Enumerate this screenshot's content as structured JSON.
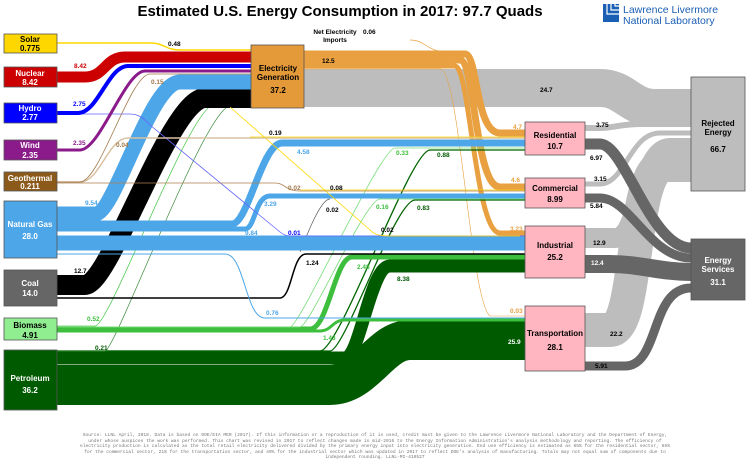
{
  "title": "Estimated U.S. Energy Consumption in 2017: 97.7 Quads",
  "logo": {
    "line1": "Lawrence Livermore",
    "line2": "National Laboratory",
    "color": "#1a5fb4"
  },
  "sources": [
    {
      "name": "Solar",
      "value": "0.775",
      "color": "#FFD700"
    },
    {
      "name": "Nuclear",
      "value": "8.42",
      "color": "#CC0000"
    },
    {
      "name": "Hydro",
      "value": "2.77",
      "color": "#0000FF"
    },
    {
      "name": "Wind",
      "value": "2.35",
      "color": "#8B1A8B"
    },
    {
      "name": "Geothermal",
      "value": "0.211",
      "color": "#8B5A1A"
    },
    {
      "name": "Natural Gas",
      "value": "28.0",
      "color": "#4DA6E8"
    },
    {
      "name": "Coal",
      "value": "14.0",
      "color": "#666666"
    },
    {
      "name": "Biomass",
      "value": "4.91",
      "color": "#90EE90"
    },
    {
      "name": "Petroleum",
      "value": "36.2",
      "color": "#005A00"
    }
  ],
  "electricity": {
    "name1": "Electricity",
    "name2": "Generation",
    "value": "37.2",
    "color": "#E59A3A"
  },
  "imports": {
    "line1": "Net Electricity",
    "line2": "Imports",
    "value": "0.06"
  },
  "sectors": [
    {
      "name": "Residential",
      "value": "10.7"
    },
    {
      "name": "Commercial",
      "value": "8.99"
    },
    {
      "name": "Industrial",
      "value": "25.2"
    },
    {
      "name": "Transportation",
      "value": "28.1"
    }
  ],
  "sinks": {
    "rejected": {
      "name1": "Rejected",
      "name2": "Energy",
      "value": "66.7"
    },
    "services": {
      "name1": "Energy",
      "name2": "Services",
      "value": "31.1"
    }
  },
  "flow_labels": {
    "solar_elec": "0.48",
    "nuclear_elec": "8.42",
    "hydro_elec": "2.75",
    "wind_elec": "2.35",
    "geo_elec": "0.15",
    "geo_res": "0.04",
    "geo_com": "0.02",
    "solar_res": "0.19",
    "solar_com": "0.08",
    "solar_ind": "0.02",
    "ng_elec": "9.54",
    "ng_res": "4.58",
    "ng_com": "3.29",
    "ng_ind": "9.84",
    "ng_trans": "0.76",
    "hydro_ind": "0.01",
    "coal_elec": "12.7",
    "coal_com": "0.02",
    "coal_ind": "1.24",
    "bio_elec": "0.52",
    "bio_res": "0.33",
    "bio_com": "0.16",
    "bio_ind": "2.48",
    "bio_trans": "1.43",
    "pet_elec": "0.21",
    "pet_res": "0.88",
    "pet_com": "0.83",
    "pet_ind": "8.38",
    "pet_trans": "25.9",
    "elec_out": "12.5",
    "elec_rej": "24.7",
    "elec_res": "4.7",
    "elec_com": "4.6",
    "elec_ind": "3.23",
    "elec_trans": "0.03",
    "res_rej": "3.75",
    "res_serv": "6.97",
    "com_rej": "3.15",
    "com_serv": "5.84",
    "ind_rej": "12.9",
    "ind_serv": "12.4",
    "trans_rej": "22.2",
    "trans_serv": "5.91"
  },
  "footer": "Source: LLNL April, 2018. Data is based on DOE/EIA MER (2017). If this information or a reproduction of it is used, credit must be given to the Lawrence Livermore National Laboratory and the Department of Energy, under whose auspices the work was performed. This chart was revised in 2017 to reflect changes made in mid-2016 to the Energy Information Administration's analysis methodology and reporting. The efficiency of electricity production is calculated as the total retail electricity delivered divided by the primary energy input into electricity generation. End use efficiency is estimated as 65% for the residential sector, 65% for the commercial sector, 21% for the transportation sector, and 49% for the industrial sector which was updated in 2017 to reflect DOE's analysis of manufacturing. Totals may not equal sum of components due to independent rounding. LLNL-MI-410527"
}
